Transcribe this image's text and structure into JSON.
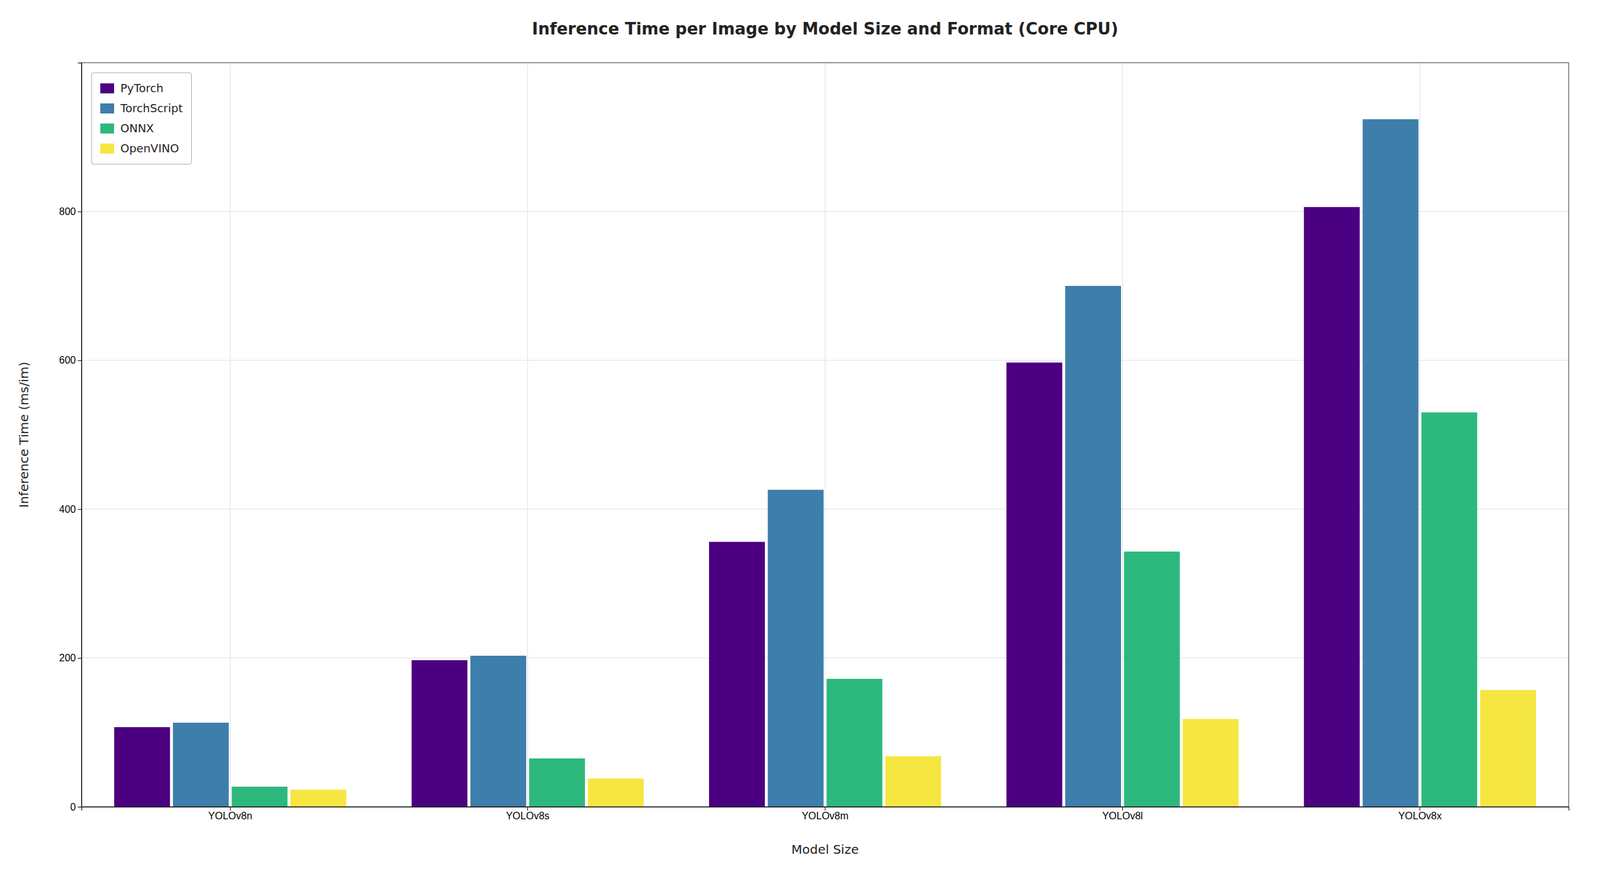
{
  "chart_data": {
    "type": "bar",
    "title": "Inference Time per Image by Model Size and Format (Core CPU)",
    "xlabel": "Model Size",
    "ylabel": "Inference Time (ms/im)",
    "categories": [
      "YOLOv8n",
      "YOLOv8s",
      "YOLOv8m",
      "YOLOv8l",
      "YOLOv8x"
    ],
    "series": [
      {
        "name": "PyTorch",
        "color": "#4b0082",
        "values": [
          107,
          197,
          356,
          597,
          806
        ]
      },
      {
        "name": "TorchScript",
        "color": "#3d7eaa",
        "values": [
          113,
          203,
          426,
          700,
          924
        ]
      },
      {
        "name": "ONNX",
        "color": "#2db87d",
        "values": [
          27,
          65,
          172,
          343,
          530
        ]
      },
      {
        "name": "OpenVINO",
        "color": "#f5e642",
        "values": [
          23,
          38,
          68,
          118,
          157
        ]
      }
    ],
    "ylim": [
      0,
      1000
    ],
    "yticks": [
      0,
      200,
      400,
      600,
      800
    ],
    "grid": true,
    "legend": "upper left"
  }
}
